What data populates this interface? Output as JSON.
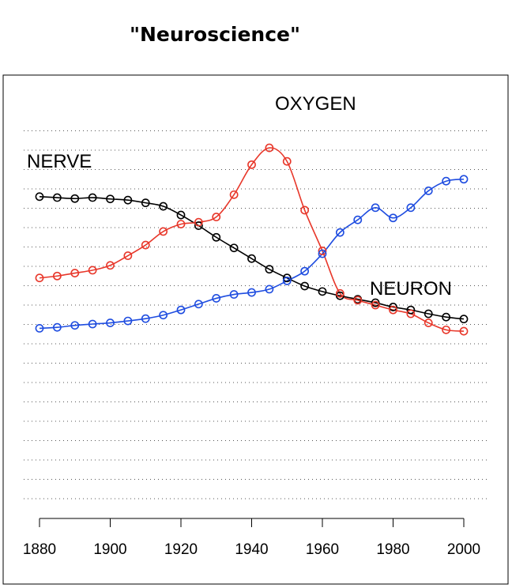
{
  "chart_data": {
    "type": "line",
    "title": "\"Neuroscience\"",
    "xlabel": "",
    "ylabel": "",
    "xlim": [
      1880,
      2000
    ],
    "xticks": [
      "1880",
      "1900",
      "1920",
      "1940",
      "1960",
      "1980",
      "2000"
    ],
    "grid": "horizontal-dotted",
    "legend": "none",
    "x": [
      1880,
      1885,
      1890,
      1895,
      1900,
      1905,
      1910,
      1915,
      1920,
      1925,
      1930,
      1935,
      1940,
      1945,
      1950,
      1955,
      1960,
      1965,
      1970,
      1975,
      1980,
      1985,
      1990,
      1995,
      2000
    ],
    "series": [
      {
        "name": "NERVE",
        "color": "#000000",
        "values": [
          4.4,
          4.45,
          4.5,
          4.45,
          4.52,
          4.58,
          4.72,
          4.9,
          5.35,
          5.9,
          6.5,
          7.05,
          7.6,
          8.15,
          8.6,
          9.02,
          9.3,
          9.52,
          9.7,
          9.88,
          10.1,
          10.25,
          10.45,
          10.62,
          10.72
        ]
      },
      {
        "name": "OXYGEN",
        "color": "#e8372a",
        "values": [
          8.6,
          8.5,
          8.35,
          8.2,
          7.95,
          7.45,
          6.9,
          6.2,
          5.82,
          5.72,
          5.45,
          4.3,
          2.75,
          1.88,
          2.58,
          5.1,
          7.2,
          9.4,
          9.75,
          10.0,
          10.25,
          10.45,
          10.92,
          11.28,
          11.35
        ]
      },
      {
        "name": "NEURON",
        "color": "#1f4de0",
        "values": [
          11.2,
          11.15,
          11.05,
          10.98,
          10.92,
          10.82,
          10.7,
          10.52,
          10.25,
          9.95,
          9.65,
          9.45,
          9.35,
          9.18,
          8.75,
          8.25,
          7.35,
          6.25,
          5.6,
          4.97,
          5.5,
          4.97,
          4.1,
          3.6,
          3.5
        ]
      }
    ],
    "series_labels": [
      {
        "name": "NERVE",
        "text": "NERVE"
      },
      {
        "name": "OXYGEN",
        "text": "OXYGEN"
      },
      {
        "name": "NEURON",
        "text": "NEURON"
      }
    ]
  }
}
